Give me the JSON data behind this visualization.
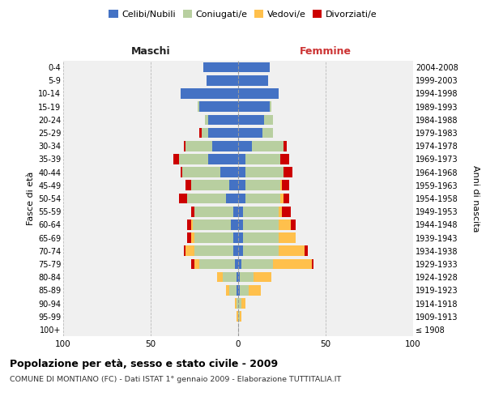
{
  "age_groups": [
    "100+",
    "95-99",
    "90-94",
    "85-89",
    "80-84",
    "75-79",
    "70-74",
    "65-69",
    "60-64",
    "55-59",
    "50-54",
    "45-49",
    "40-44",
    "35-39",
    "30-34",
    "25-29",
    "20-24",
    "15-19",
    "10-14",
    "5-9",
    "0-4"
  ],
  "birth_years": [
    "≤ 1908",
    "1909-1913",
    "1914-1918",
    "1919-1923",
    "1924-1928",
    "1929-1933",
    "1934-1938",
    "1939-1943",
    "1944-1948",
    "1949-1953",
    "1954-1958",
    "1959-1963",
    "1964-1968",
    "1969-1973",
    "1974-1978",
    "1979-1983",
    "1984-1988",
    "1989-1993",
    "1994-1998",
    "1999-2003",
    "2004-2008"
  ],
  "males": {
    "celibi": [
      0,
      0,
      0,
      1,
      1,
      2,
      3,
      3,
      4,
      3,
      7,
      5,
      10,
      17,
      15,
      17,
      17,
      22,
      33,
      18,
      20
    ],
    "coniugati": [
      0,
      0,
      1,
      4,
      8,
      20,
      22,
      22,
      22,
      22,
      22,
      22,
      22,
      17,
      15,
      4,
      2,
      1,
      0,
      0,
      0
    ],
    "vedovi": [
      0,
      1,
      1,
      2,
      3,
      3,
      5,
      2,
      1,
      0,
      0,
      0,
      0,
      0,
      0,
      0,
      0,
      0,
      0,
      0,
      0
    ],
    "divorziati": [
      0,
      0,
      0,
      0,
      0,
      2,
      1,
      2,
      2,
      2,
      5,
      3,
      1,
      3,
      1,
      1,
      0,
      0,
      0,
      0,
      0
    ]
  },
  "females": {
    "nubili": [
      0,
      0,
      0,
      1,
      1,
      2,
      3,
      3,
      3,
      3,
      4,
      4,
      4,
      4,
      8,
      14,
      15,
      18,
      23,
      17,
      18
    ],
    "coniugate": [
      0,
      1,
      2,
      5,
      8,
      18,
      20,
      20,
      20,
      20,
      20,
      20,
      22,
      20,
      18,
      6,
      5,
      1,
      0,
      0,
      0
    ],
    "vedove": [
      0,
      1,
      2,
      7,
      10,
      22,
      15,
      10,
      7,
      2,
      2,
      1,
      0,
      0,
      0,
      0,
      0,
      0,
      0,
      0,
      0
    ],
    "divorziate": [
      0,
      0,
      0,
      0,
      0,
      1,
      2,
      0,
      3,
      5,
      3,
      4,
      5,
      5,
      2,
      0,
      0,
      0,
      0,
      0,
      0
    ]
  },
  "colors": {
    "celibi": "#4472c4",
    "coniugati": "#b8cfa0",
    "vedovi": "#ffc04c",
    "divorziati": "#cc0000"
  },
  "title": "Popolazione per età, sesso e stato civile - 2009",
  "subtitle": "COMUNE DI MONTIANO (FC) - Dati ISTAT 1° gennaio 2009 - Elaborazione TUTTITALIA.IT",
  "ylabel_left": "Fasce di età",
  "ylabel_right": "Anni di nascita",
  "xlabel_left": "Maschi",
  "xlabel_right": "Femmine",
  "xlim": 100,
  "bg_color": "#f0f0f0",
  "grid_color": "#cccccc"
}
